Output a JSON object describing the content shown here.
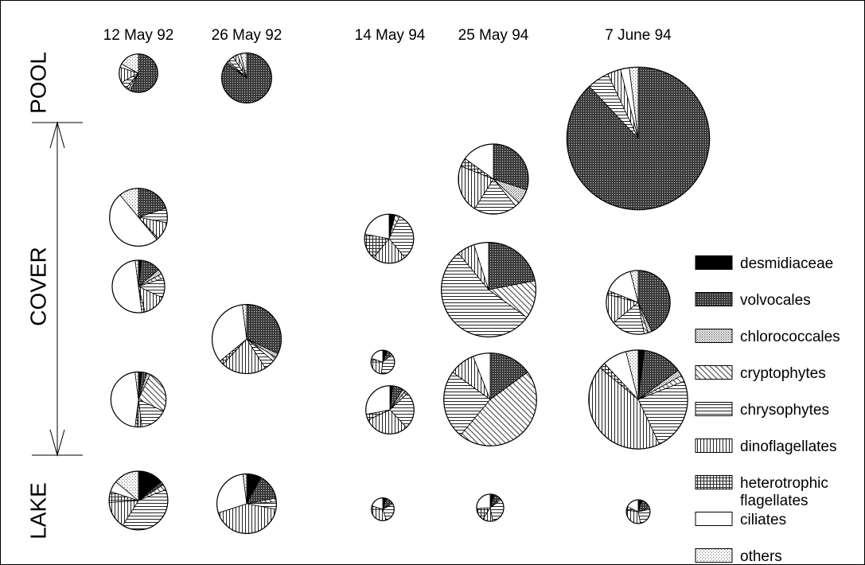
{
  "chart_data": {
    "type": "pie",
    "dates": [
      "12 May 92",
      "26 May 92",
      "14 May 94",
      "25 May 94",
      "7 June 94"
    ],
    "sites": [
      "POOL",
      "COVER",
      "LAKE"
    ],
    "categories": [
      {
        "key": "desmidiaceae",
        "label": "desmidiaceae",
        "pattern": "black"
      },
      {
        "key": "volvocales",
        "label": "volvocales",
        "pattern": "dark-dots"
      },
      {
        "key": "chlorococcales",
        "label": "chlorococcales",
        "pattern": "light-dots"
      },
      {
        "key": "cryptophytes",
        "label": "cryptophytes",
        "pattern": "diagonal"
      },
      {
        "key": "chrysophytes",
        "label": "chrysophytes",
        "pattern": "horizontal"
      },
      {
        "key": "dinoflagellates",
        "label": "dinoflagellates",
        "pattern": "vertical"
      },
      {
        "key": "heterotrophic",
        "label": "heterotrophic flagellates",
        "label_lines": [
          "heterotrophic",
          "flagellates"
        ],
        "pattern": "grid"
      },
      {
        "key": "ciliates",
        "label": "ciliates",
        "pattern": "white"
      },
      {
        "key": "others",
        "label": "others",
        "pattern": "fine-dots"
      }
    ],
    "pies": [
      {
        "date": "12 May 92",
        "site": "POOL",
        "relative_size": 0.44,
        "values": {
          "desmidiaceae": 0,
          "volvocales": 57,
          "chlorococcales": 2,
          "cryptophytes": 2,
          "chrysophytes": 6,
          "dinoflagellates": 13,
          "heterotrophic": 0,
          "ciliates": 3,
          "others": 17
        }
      },
      {
        "date": "26 May 92",
        "site": "POOL",
        "relative_size": 0.57,
        "values": {
          "desmidiaceae": 0,
          "volvocales": 85,
          "chlorococcales": 1,
          "cryptophytes": 1,
          "chrysophytes": 4,
          "dinoflagellates": 3,
          "heterotrophic": 0,
          "ciliates": 2,
          "others": 4
        }
      },
      {
        "date": "7 June 94",
        "site": "POOL",
        "relative_size": 1.63,
        "values": {
          "desmidiaceae": 0,
          "volvocales": 88,
          "chlorococcales": 0,
          "cryptophytes": 0,
          "chrysophytes": 5,
          "dinoflagellates": 3,
          "heterotrophic": 0,
          "ciliates": 2,
          "others": 2
        }
      },
      {
        "date": "12 May 92",
        "site": "COVER",
        "relative_size": 0.66,
        "values": {
          "desmidiaceae": 0,
          "volvocales": 20,
          "chlorococcales": 0,
          "cryptophytes": 0,
          "chrysophytes": 8,
          "dinoflagellates": 10,
          "heterotrophic": 1,
          "ciliates": 50,
          "others": 11
        }
      },
      {
        "date": "12 May 92",
        "site": "COVER",
        "relative_size": 0.6,
        "values": {
          "desmidiaceae": 2,
          "volvocales": 12,
          "chlorococcales": 3,
          "cryptophytes": 3,
          "chrysophytes": 12,
          "dinoflagellates": 14,
          "heterotrophic": 2,
          "ciliates": 50,
          "others": 2
        }
      },
      {
        "date": "12 May 92",
        "site": "COVER",
        "relative_size": 0.63,
        "values": {
          "desmidiaceae": 2,
          "volvocales": 3,
          "chlorococcales": 2,
          "cryptophytes": 25,
          "chrysophytes": 16,
          "dinoflagellates": 2,
          "heterotrophic": 2,
          "ciliates": 46,
          "others": 2
        }
      },
      {
        "date": "26 May 92",
        "site": "COVER",
        "relative_size": 0.79,
        "values": {
          "desmidiaceae": 0,
          "volvocales": 32,
          "chlorococcales": 2,
          "cryptophytes": 2,
          "chrysophytes": 5,
          "dinoflagellates": 21,
          "heterotrophic": 2,
          "ciliates": 34,
          "others": 2
        }
      },
      {
        "date": "14 May 94",
        "site": "COVER",
        "relative_size": 0.56,
        "values": {
          "desmidiaceae": 4,
          "volvocales": 0,
          "chlorococcales": 0,
          "cryptophytes": 3,
          "chrysophytes": 32,
          "dinoflagellates": 22,
          "heterotrophic": 17,
          "ciliates": 22,
          "others": 0
        }
      },
      {
        "date": "14 May 94",
        "site": "COVER",
        "relative_size": 0.27,
        "values": {
          "desmidiaceae": 6,
          "volvocales": 8,
          "chlorococcales": 0,
          "cryptophytes": 0,
          "chrysophytes": 38,
          "dinoflagellates": 23,
          "heterotrophic": 5,
          "ciliates": 20,
          "others": 0
        }
      },
      {
        "date": "14 May 94",
        "site": "COVER",
        "relative_size": 0.55,
        "values": {
          "desmidiaceae": 2,
          "volvocales": 7,
          "chlorococcales": 2,
          "cryptophytes": 2,
          "chrysophytes": 25,
          "dinoflagellates": 30,
          "heterotrophic": 4,
          "ciliates": 28,
          "others": 0
        }
      },
      {
        "date": "25 May 94",
        "site": "COVER",
        "relative_size": 0.8,
        "values": {
          "desmidiaceae": 0,
          "volvocales": 30,
          "chlorococcales": 7,
          "cryptophytes": 2,
          "chrysophytes": 20,
          "dinoflagellates": 22,
          "heterotrophic": 4,
          "ciliates": 15,
          "others": 0
        }
      },
      {
        "date": "25 May 94",
        "site": "COVER",
        "relative_size": 1.08,
        "values": {
          "desmidiaceae": 0,
          "volvocales": 22,
          "chlorococcales": 0,
          "cryptophytes": 13,
          "chrysophytes": 54,
          "dinoflagellates": 6,
          "heterotrophic": 0,
          "ciliates": 5,
          "others": 0
        }
      },
      {
        "date": "25 May 94",
        "site": "COVER",
        "relative_size": 1.06,
        "values": {
          "desmidiaceae": 0,
          "volvocales": 15,
          "chlorococcales": 0,
          "cryptophytes": 46,
          "chrysophytes": 24,
          "dinoflagellates": 9,
          "heterotrophic": 0,
          "ciliates": 6,
          "others": 0
        }
      },
      {
        "date": "7 June 94",
        "site": "COVER",
        "relative_size": 0.73,
        "values": {
          "desmidiaceae": 0,
          "volvocales": 43,
          "chlorococcales": 2,
          "cryptophytes": 2,
          "chrysophytes": 17,
          "dinoflagellates": 15,
          "heterotrophic": 2,
          "ciliates": 15,
          "others": 4
        }
      },
      {
        "date": "7 June 94",
        "site": "COVER",
        "relative_size": 1.13,
        "values": {
          "desmidiaceae": 2,
          "volvocales": 13,
          "chlorococcales": 2,
          "cryptophytes": 2,
          "chrysophytes": 24,
          "dinoflagellates": 43,
          "heterotrophic": 2,
          "ciliates": 8,
          "others": 4
        }
      },
      {
        "date": "12 May 92",
        "site": "LAKE",
        "relative_size": 0.67,
        "values": {
          "desmidiaceae": 14,
          "volvocales": 2,
          "chlorococcales": 0,
          "cryptophytes": 3,
          "chrysophytes": 40,
          "dinoflagellates": 15,
          "heterotrophic": 6,
          "ciliates": 6,
          "others": 14
        }
      },
      {
        "date": "26 May 92",
        "site": "LAKE",
        "relative_size": 0.68,
        "values": {
          "desmidiaceae": 8,
          "volvocales": 14,
          "chlorococcales": 0,
          "cryptophytes": 2,
          "chrysophytes": 4,
          "dinoflagellates": 42,
          "heterotrophic": 0,
          "ciliates": 28,
          "others": 2
        }
      },
      {
        "date": "14 May 94",
        "site": "LAKE",
        "relative_size": 0.26,
        "values": {
          "desmidiaceae": 5,
          "volvocales": 10,
          "chlorococcales": 0,
          "cryptophytes": 2,
          "chrysophytes": 28,
          "dinoflagellates": 30,
          "heterotrophic": 5,
          "ciliates": 20,
          "others": 0
        }
      },
      {
        "date": "25 May 94",
        "site": "LAKE",
        "relative_size": 0.31,
        "values": {
          "desmidiaceae": 5,
          "volvocales": 8,
          "chlorococcales": 0,
          "cryptophytes": 2,
          "chrysophytes": 32,
          "dinoflagellates": 12,
          "heterotrophic": 15,
          "ciliates": 26,
          "others": 0
        }
      },
      {
        "date": "7 June 94",
        "site": "LAKE",
        "relative_size": 0.27,
        "values": {
          "desmidiaceae": 5,
          "volvocales": 15,
          "chlorococcales": 0,
          "cryptophytes": 2,
          "chrysophytes": 25,
          "dinoflagellates": 30,
          "heterotrophic": 5,
          "ciliates": 18,
          "others": 0
        }
      }
    ]
  }
}
